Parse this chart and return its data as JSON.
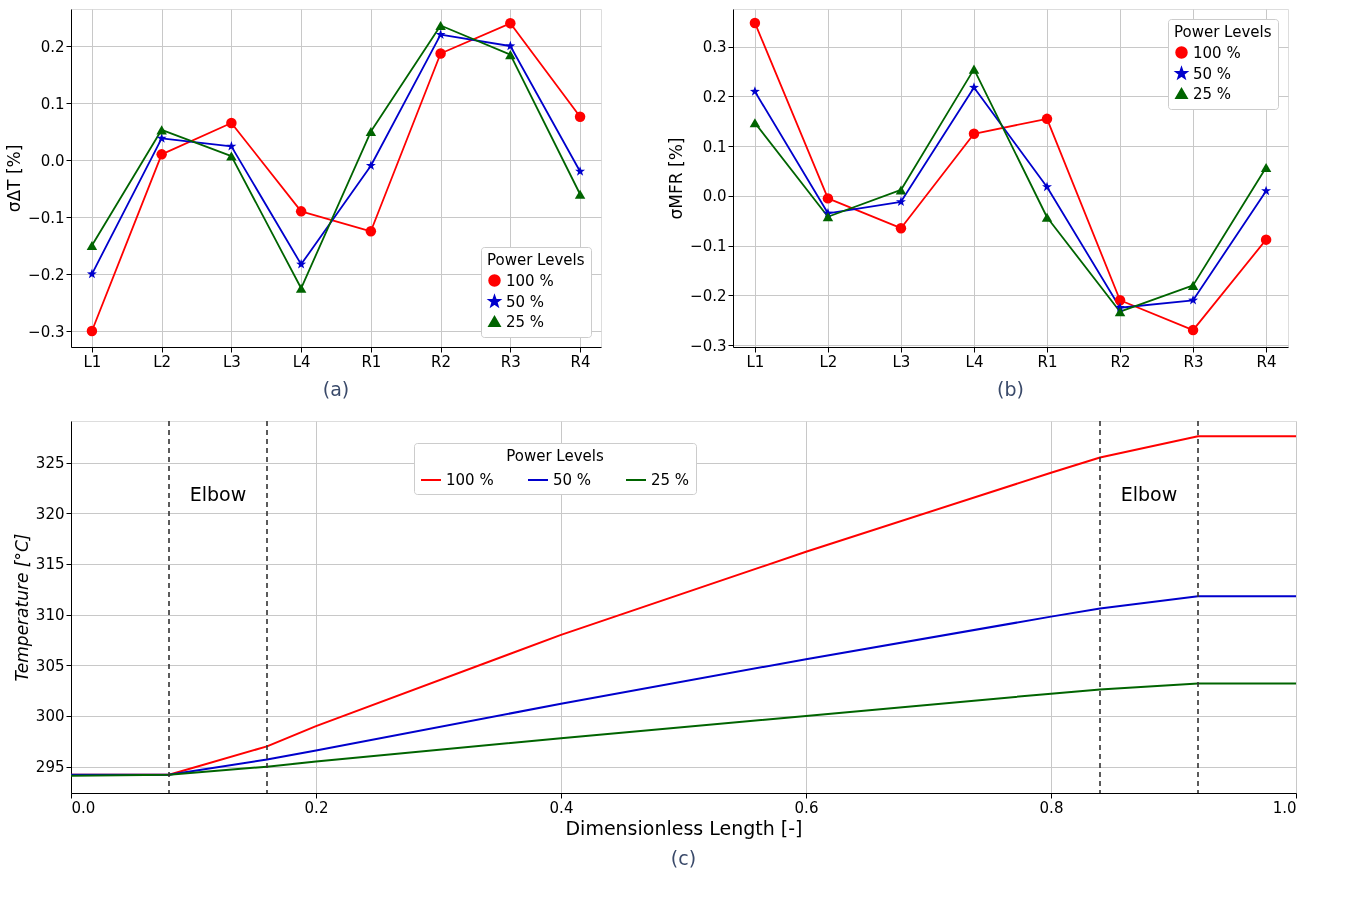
{
  "chart_data": [
    {
      "type": "line",
      "ylabel": "σΔT [%]",
      "categories": [
        "L1",
        "L2",
        "L3",
        "L4",
        "R1",
        "R2",
        "R3",
        "R4"
      ],
      "legend_title": "Power Levels",
      "legend": "bottom right",
      "grid": true,
      "line_style": "solid",
      "ylim": [
        -0.328,
        0.265
      ],
      "yticks": [
        -0.3,
        -0.2,
        -0.1,
        {
          "value": 0,
          "label": "0.0"
        },
        0.1,
        0.2
      ],
      "series": [
        {
          "name": "100 %",
          "color": "#ff0000",
          "marker": "circle",
          "values": [
            -0.3,
            0.01,
            0.065,
            -0.09,
            -0.125,
            0.187,
            0.24,
            0.076
          ]
        },
        {
          "name": "50 %",
          "color": "#0000cc",
          "marker": "star",
          "values": [
            -0.2,
            0.038,
            0.024,
            -0.183,
            -0.01,
            0.22,
            0.2,
            -0.02
          ]
        },
        {
          "name": "25 %",
          "color": "#006400",
          "marker": "triangle",
          "values": [
            -0.15,
            0.053,
            0.007,
            -0.225,
            0.05,
            0.236,
            0.185,
            -0.06
          ]
        }
      ],
      "annotations": [
        "(a)"
      ]
    },
    {
      "type": "line",
      "ylabel": "σMFR [%]",
      "categories": [
        "L1",
        "L2",
        "L3",
        "L4",
        "R1",
        "R2",
        "R3",
        "R4"
      ],
      "legend_title": "Power Levels",
      "legend": "top right",
      "grid": true,
      "line_style": "solid",
      "ylim": [
        -0.304,
        0.376
      ],
      "yticks": [
        -0.3,
        -0.2,
        -0.1,
        {
          "value": 0,
          "label": "0.0"
        },
        0.1,
        0.2,
        0.3
      ],
      "series": [
        {
          "name": "100 %",
          "color": "#ff0000",
          "marker": "circle",
          "values": [
            0.348,
            -0.005,
            -0.065,
            0.125,
            0.155,
            -0.21,
            -0.27,
            -0.088
          ]
        },
        {
          "name": "50 %",
          "color": "#0000cc",
          "marker": "star",
          "values": [
            0.21,
            -0.035,
            -0.012,
            0.218,
            0.018,
            -0.225,
            -0.21,
            0.01
          ]
        },
        {
          "name": "25 %",
          "color": "#006400",
          "marker": "triangle",
          "values": [
            0.147,
            -0.042,
            0.012,
            0.255,
            -0.043,
            -0.233,
            -0.18,
            0.057
          ]
        }
      ],
      "annotations": [
        "(b)"
      ]
    },
    {
      "type": "line",
      "xlabel": "Dimensionless Length [-]",
      "ylabel": "Temperature [°C]",
      "legend_title": "Power Levels",
      "legend": "top",
      "grid": true,
      "line_style": "solid",
      "x": [
        0.0,
        0.08,
        0.16,
        0.2,
        0.4,
        0.6,
        0.8,
        0.84,
        0.92,
        1.0
      ],
      "xlim": [
        0.0,
        1.0
      ],
      "xticks": [
        {
          "value": 0,
          "label": "0.0"
        },
        0.2,
        0.4,
        0.6,
        0.8,
        {
          "value": 1,
          "label": "1.0"
        }
      ],
      "ylim": [
        292.4,
        329.1
      ],
      "yticks": [
        295,
        300,
        305,
        310,
        315,
        320,
        325
      ],
      "series": [
        {
          "name": "100 %",
          "color": "#ff0000",
          "values": [
            294.2,
            294.2,
            297.0,
            299.0,
            308.0,
            316.2,
            324.0,
            325.5,
            327.6,
            327.6
          ]
        },
        {
          "name": "50 %",
          "color": "#0000cc",
          "values": [
            294.2,
            294.2,
            295.7,
            296.6,
            301.2,
            305.6,
            309.8,
            310.6,
            311.8,
            311.8
          ]
        },
        {
          "name": "25 %",
          "color": "#006400",
          "values": [
            294.1,
            294.2,
            295.0,
            295.5,
            297.8,
            300.0,
            302.2,
            302.6,
            303.2,
            303.2
          ]
        }
      ],
      "ref_lines": [
        {
          "axis": "x",
          "value": 0.08,
          "color": "#333333",
          "line_style": "dashed"
        },
        {
          "axis": "x",
          "value": 0.16,
          "color": "#333333",
          "line_style": "dashed"
        },
        {
          "axis": "x",
          "value": 0.84,
          "color": "#333333",
          "line_style": "dashed"
        },
        {
          "axis": "x",
          "value": 0.92,
          "color": "#333333",
          "line_style": "dashed"
        }
      ],
      "annotations": [
        "Elbow",
        "Elbow",
        "(c)"
      ]
    }
  ]
}
